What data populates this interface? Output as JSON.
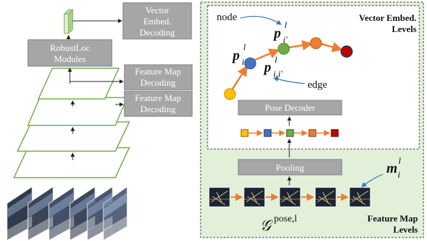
{
  "left": {
    "vector_decoding": [
      "Vector",
      "Embed.",
      "Decoding"
    ],
    "modules": [
      "RobustLoc",
      "Modules"
    ],
    "feature_map_decoding_1": [
      "Feature Map",
      "Decoding"
    ],
    "feature_map_decoding_2": [
      "Feature Map",
      "Decoding"
    ]
  },
  "right": {
    "vector_levels": [
      "Vector Embed.",
      "Levels"
    ],
    "feature_levels": [
      "Feature Map",
      "Levels"
    ],
    "node_label": "node",
    "edge_label": "edge",
    "pose_decoder": "Pose Decoder",
    "pooling": "Pooling",
    "graph_label_main": "𝒢",
    "graph_label_sup": "pose,l",
    "p_i_main": "p",
    "p_i_sup": "l",
    "p_i_sub": "i",
    "p_ip_main": "p",
    "p_ip_sup": "l",
    "p_ip_sub": "i′",
    "p_edge_main": "p",
    "p_edge_sup": "l",
    "p_edge_sub": "i,i′",
    "m_main": "m",
    "m_sup": "l",
    "m_sub": "i"
  },
  "colors": {
    "gray_box": "#a6a6a6",
    "green_fill": "#e2efd9",
    "layer_edge": "#70ad47",
    "node_yellow": "#ffc000",
    "node_blue": "#4472c4",
    "node_green": "#70ad47",
    "node_orange": "#ed7d31",
    "node_red": "#c00000",
    "arrow_orange": "#ed7d31",
    "arrow_blue": "#2e75b6"
  }
}
